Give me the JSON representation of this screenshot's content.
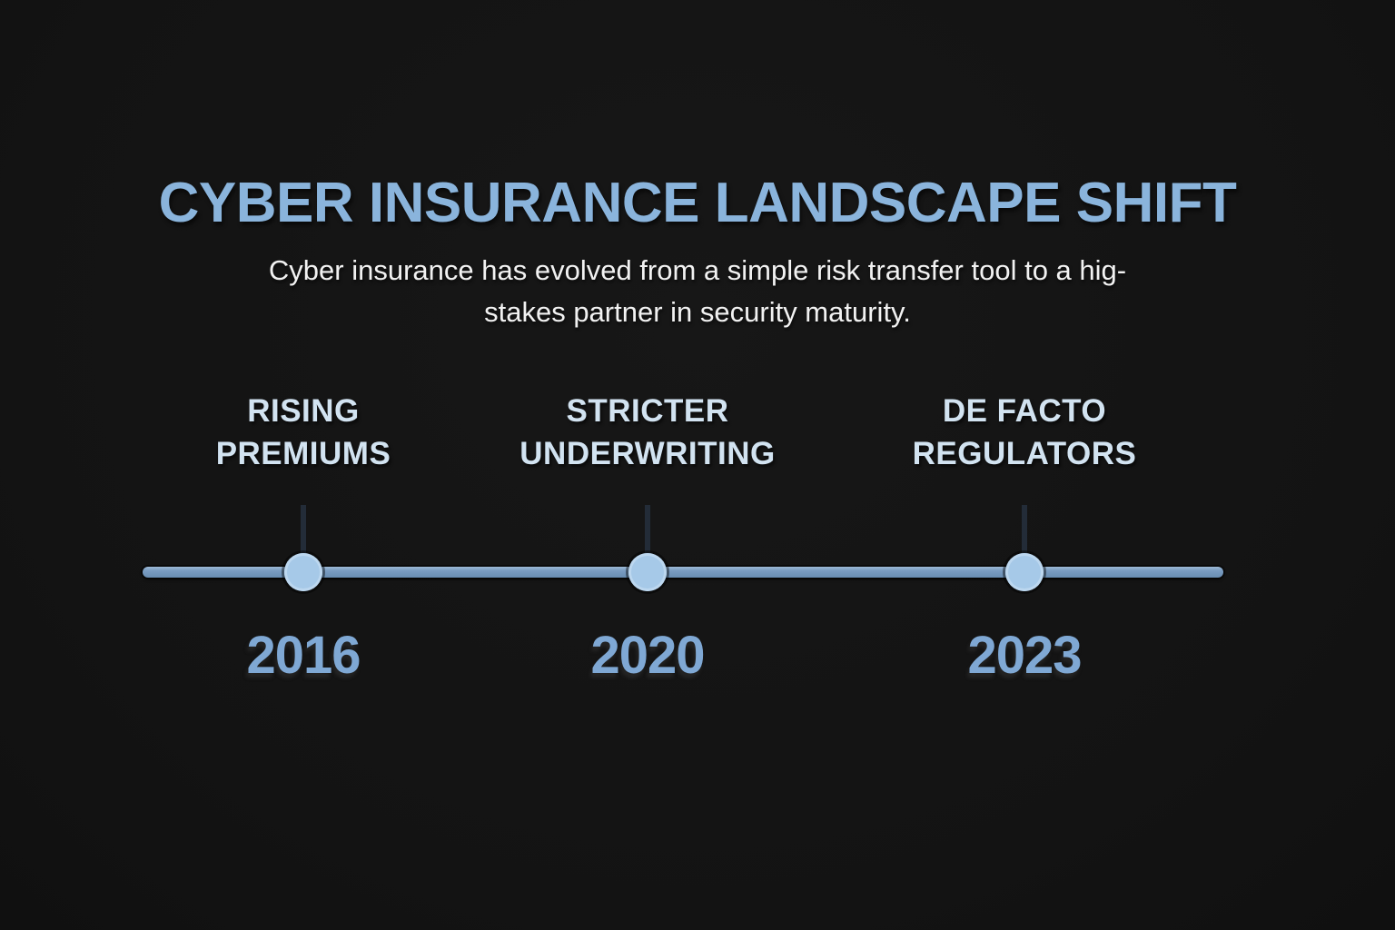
{
  "header": {
    "title": "CYBER INSURANCE LANDSCAPE SHIFT",
    "subtitle": "Cyber insurance has evolved from a simple risk transfer tool to a hig-\nstakes partner in security maturity."
  },
  "timeline": {
    "milestones": [
      {
        "label": "RISING\nPREMIUMS",
        "year": "2016"
      },
      {
        "label": "STRICTER\nUNDERWRITING",
        "year": "2020"
      },
      {
        "label": "DE FACTO\nREGULATORS",
        "year": "2023"
      }
    ]
  },
  "colors": {
    "background": "#141414",
    "title": "#8ab4dc",
    "subtitle": "#f2f2f2",
    "milestone_label": "#d2e3f1",
    "year": "#7fa8d4",
    "timeline_line": "#7a9dc2",
    "dot": "#a6c9e8",
    "tick": "#232c38"
  }
}
